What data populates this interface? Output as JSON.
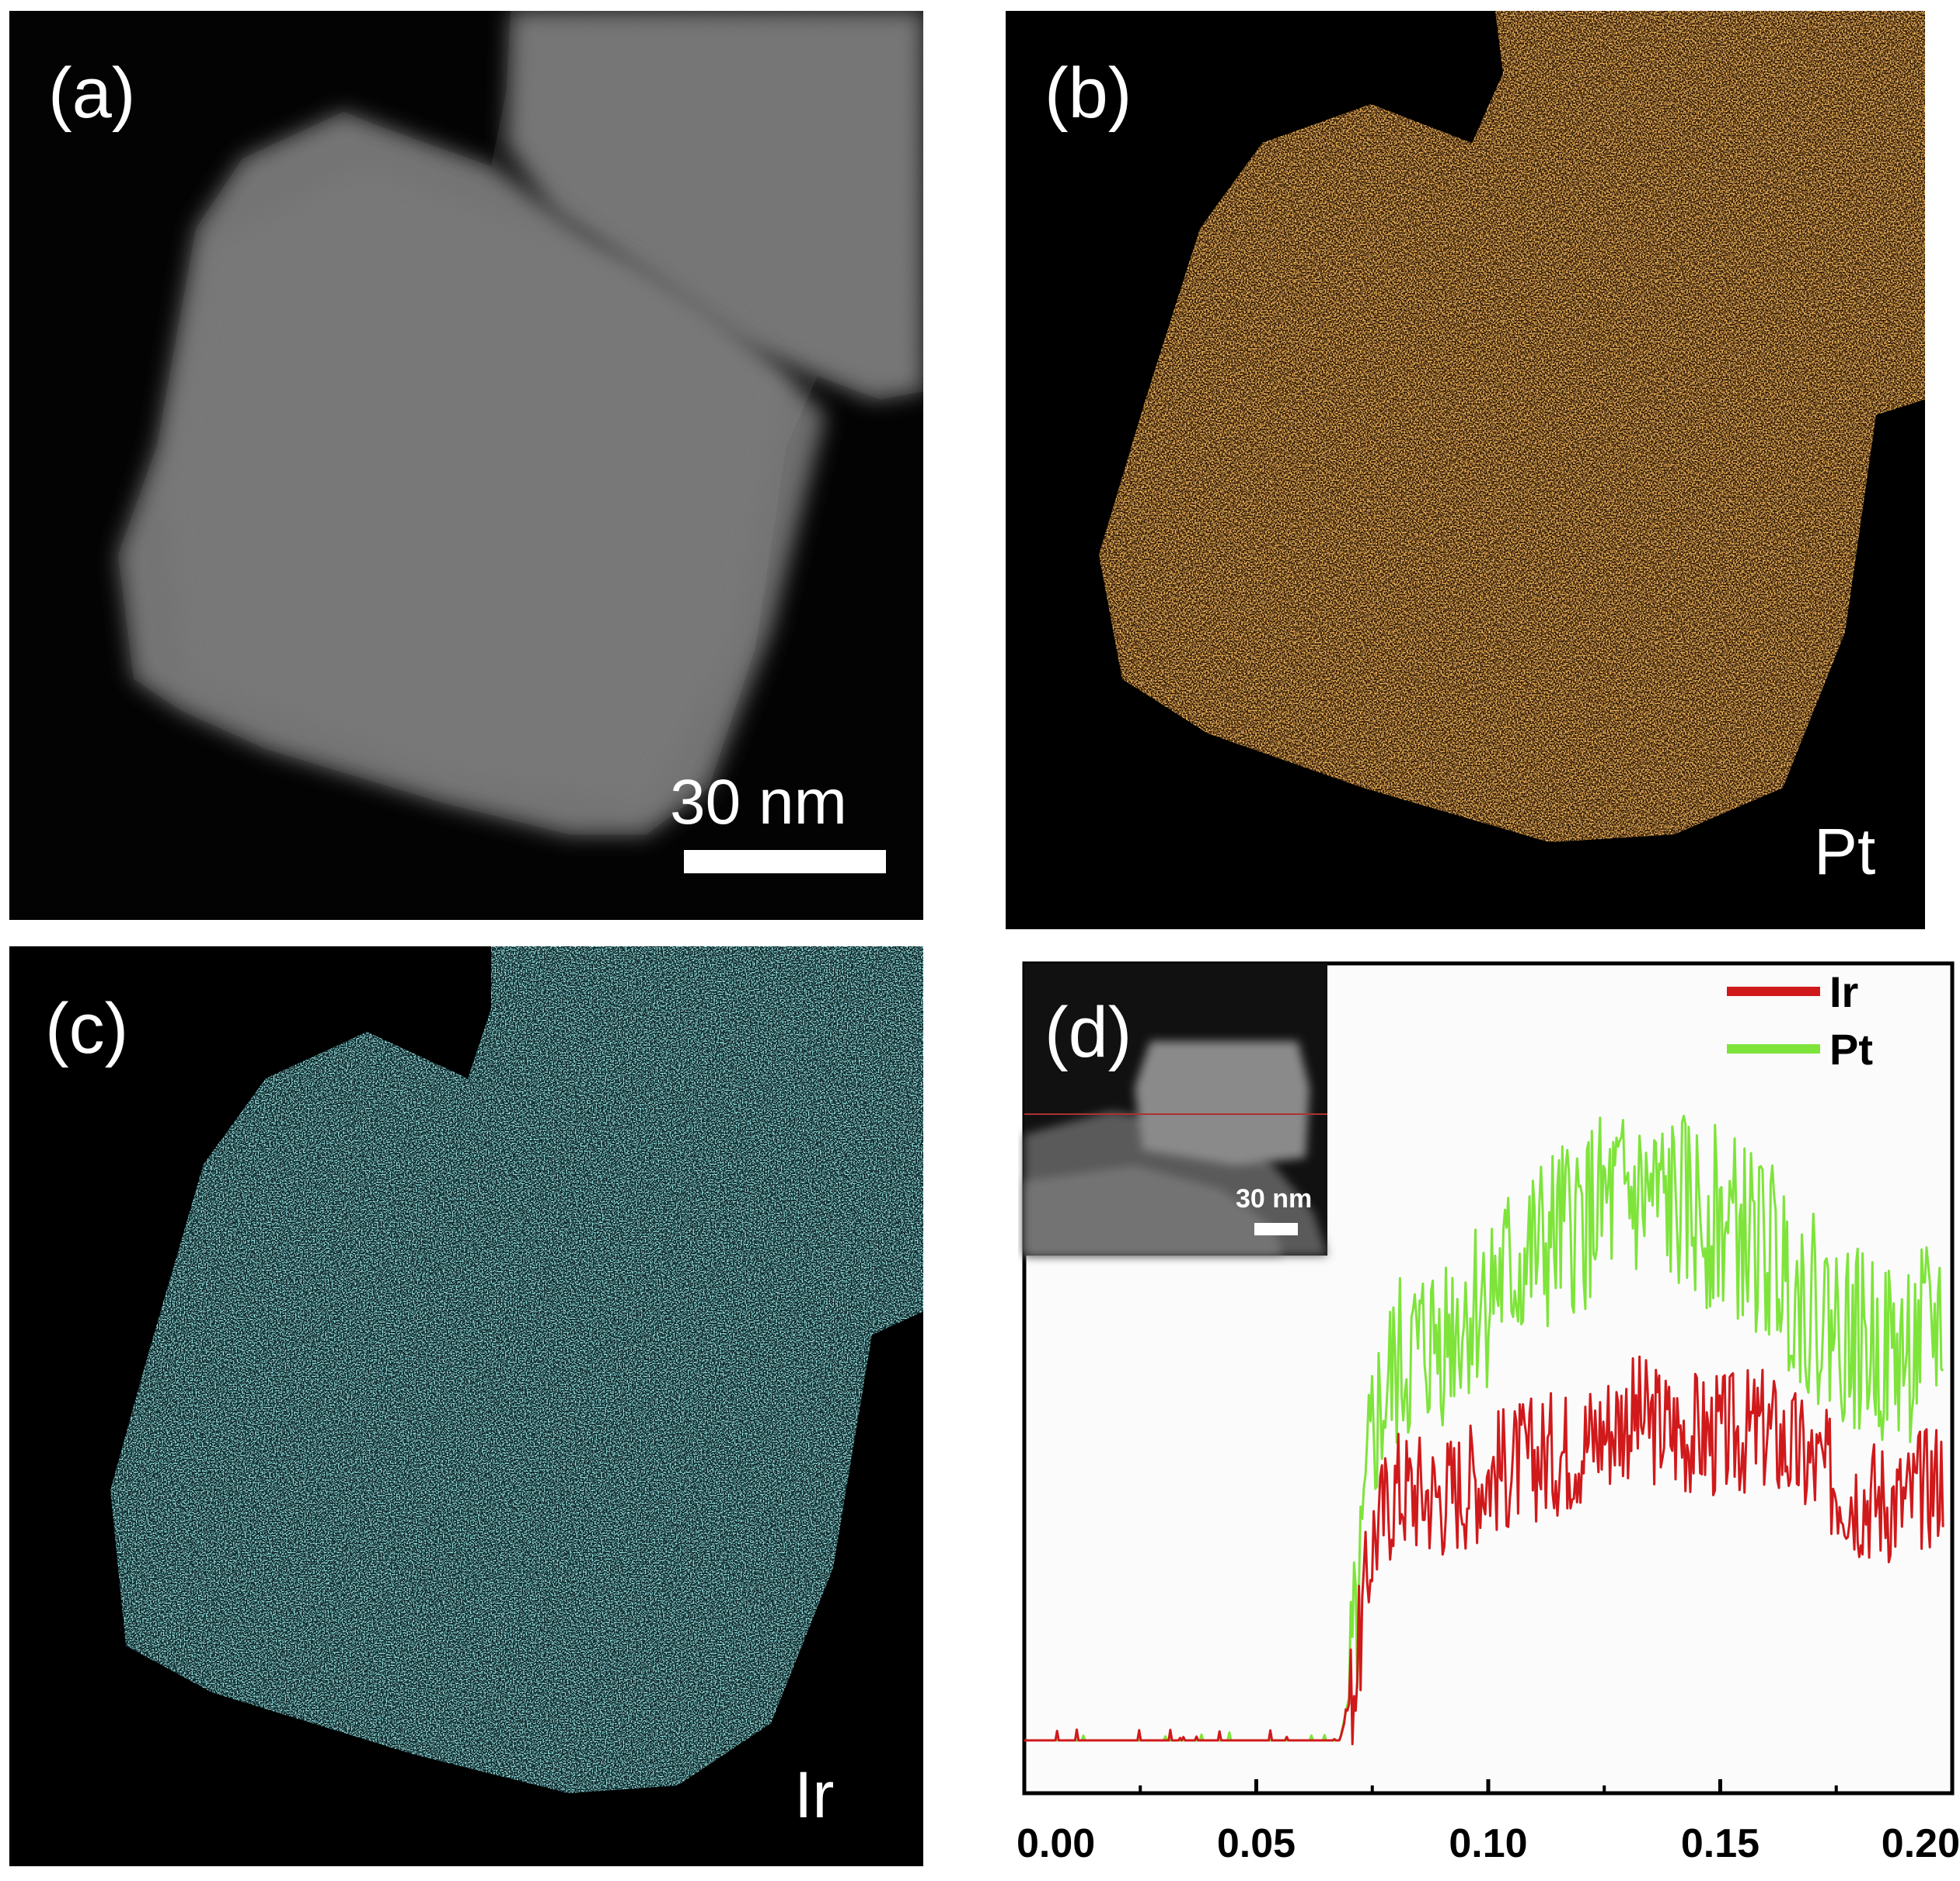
{
  "panels": {
    "a": {
      "label": "(a)",
      "scale_bar": "30 nm"
    },
    "b": {
      "label": "(b)",
      "element": "Pt",
      "color": "#e07a1c"
    },
    "c": {
      "label": "(c)",
      "element": "Ir",
      "color": "#4fd6dc"
    },
    "d": {
      "label": "(d)",
      "inset_scale_bar": "30 nm"
    }
  },
  "chart_data": {
    "type": "line",
    "title": "",
    "xlabel": "",
    "ylabel": "",
    "xlim": [
      0,
      0.2
    ],
    "x_ticks": [
      "0.00",
      "0.05",
      "0.10",
      "0.15",
      "0.20"
    ],
    "grid": false,
    "legend_position": "top-right",
    "series": [
      {
        "name": "Ir",
        "color": "#d0191b",
        "x": [
          0.0,
          0.068,
          0.07,
          0.072,
          0.075,
          0.08,
          0.09,
          0.1,
          0.11,
          0.12,
          0.13,
          0.14,
          0.15,
          0.16,
          0.17,
          0.18,
          0.19,
          0.198
        ],
        "y": [
          0.0,
          0.0,
          0.05,
          0.12,
          0.28,
          0.35,
          0.34,
          0.37,
          0.39,
          0.41,
          0.45,
          0.43,
          0.42,
          0.43,
          0.38,
          0.34,
          0.33,
          0.37
        ]
      },
      {
        "name": "Pt",
        "color": "#7ee43a",
        "x": [
          0.0,
          0.068,
          0.07,
          0.072,
          0.075,
          0.08,
          0.09,
          0.1,
          0.11,
          0.12,
          0.13,
          0.14,
          0.15,
          0.16,
          0.17,
          0.18,
          0.19,
          0.198
        ],
        "y": [
          0.0,
          0.0,
          0.06,
          0.17,
          0.42,
          0.51,
          0.56,
          0.62,
          0.67,
          0.72,
          0.75,
          0.74,
          0.72,
          0.68,
          0.6,
          0.55,
          0.53,
          0.58
        ]
      }
    ]
  }
}
